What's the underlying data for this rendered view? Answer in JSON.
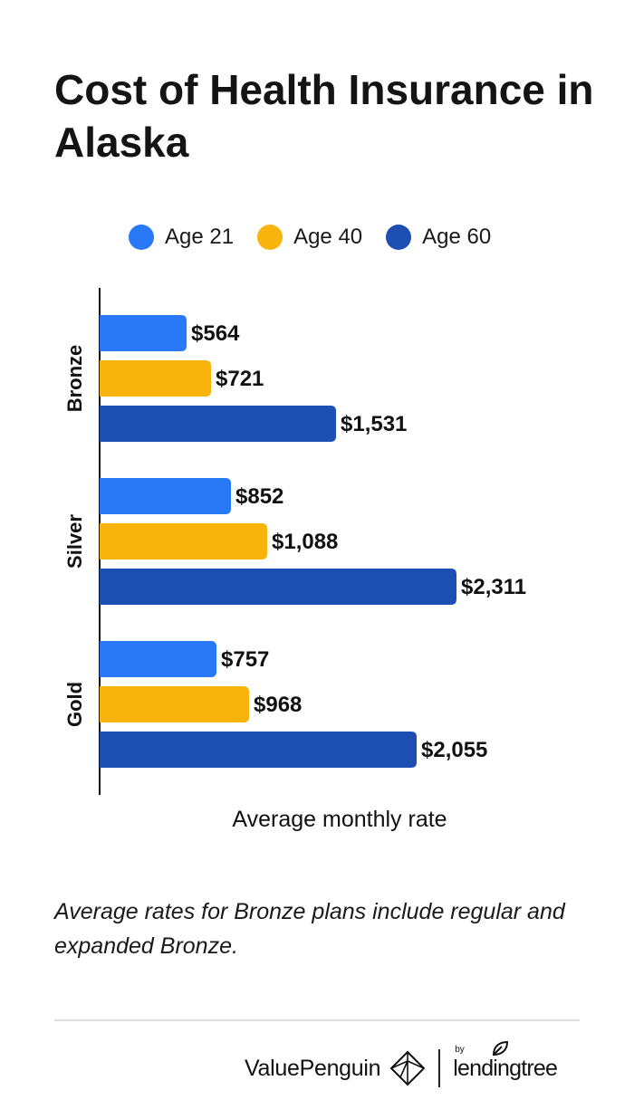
{
  "title": "Cost of Health Insurance in Alaska",
  "legend": [
    {
      "label": "Age 21",
      "color": "#2979f7"
    },
    {
      "label": "Age 40",
      "color": "#f8b30c"
    },
    {
      "label": "Age 60",
      "color": "#1d4fb3"
    }
  ],
  "chart_data": {
    "type": "bar",
    "orientation": "horizontal",
    "categories": [
      "Bronze",
      "Silver",
      "Gold"
    ],
    "series": [
      {
        "name": "Age 21",
        "color": "#2979f7",
        "values": [
          564,
          852,
          757
        ],
        "labels": [
          "$564",
          "$852",
          "$757"
        ]
      },
      {
        "name": "Age 40",
        "color": "#f8b30c",
        "values": [
          721,
          1088,
          968
        ],
        "labels": [
          "$721",
          "$1,088",
          "$968"
        ]
      },
      {
        "name": "Age 60",
        "color": "#1d4fb3",
        "values": [
          1531,
          2311,
          2055
        ],
        "labels": [
          "$1,531",
          "$2,311",
          "$2,055"
        ]
      }
    ],
    "xlabel": "Average monthly rate",
    "ylabel": "",
    "xlim": [
      0,
      2311
    ],
    "grid": false,
    "legend_position": "top"
  },
  "note": "Average rates for Bronze plans include regular and expanded Bronze.",
  "footer": {
    "brand_left": "ValuePenguin",
    "by": "by",
    "brand_right": "lendingtree"
  }
}
